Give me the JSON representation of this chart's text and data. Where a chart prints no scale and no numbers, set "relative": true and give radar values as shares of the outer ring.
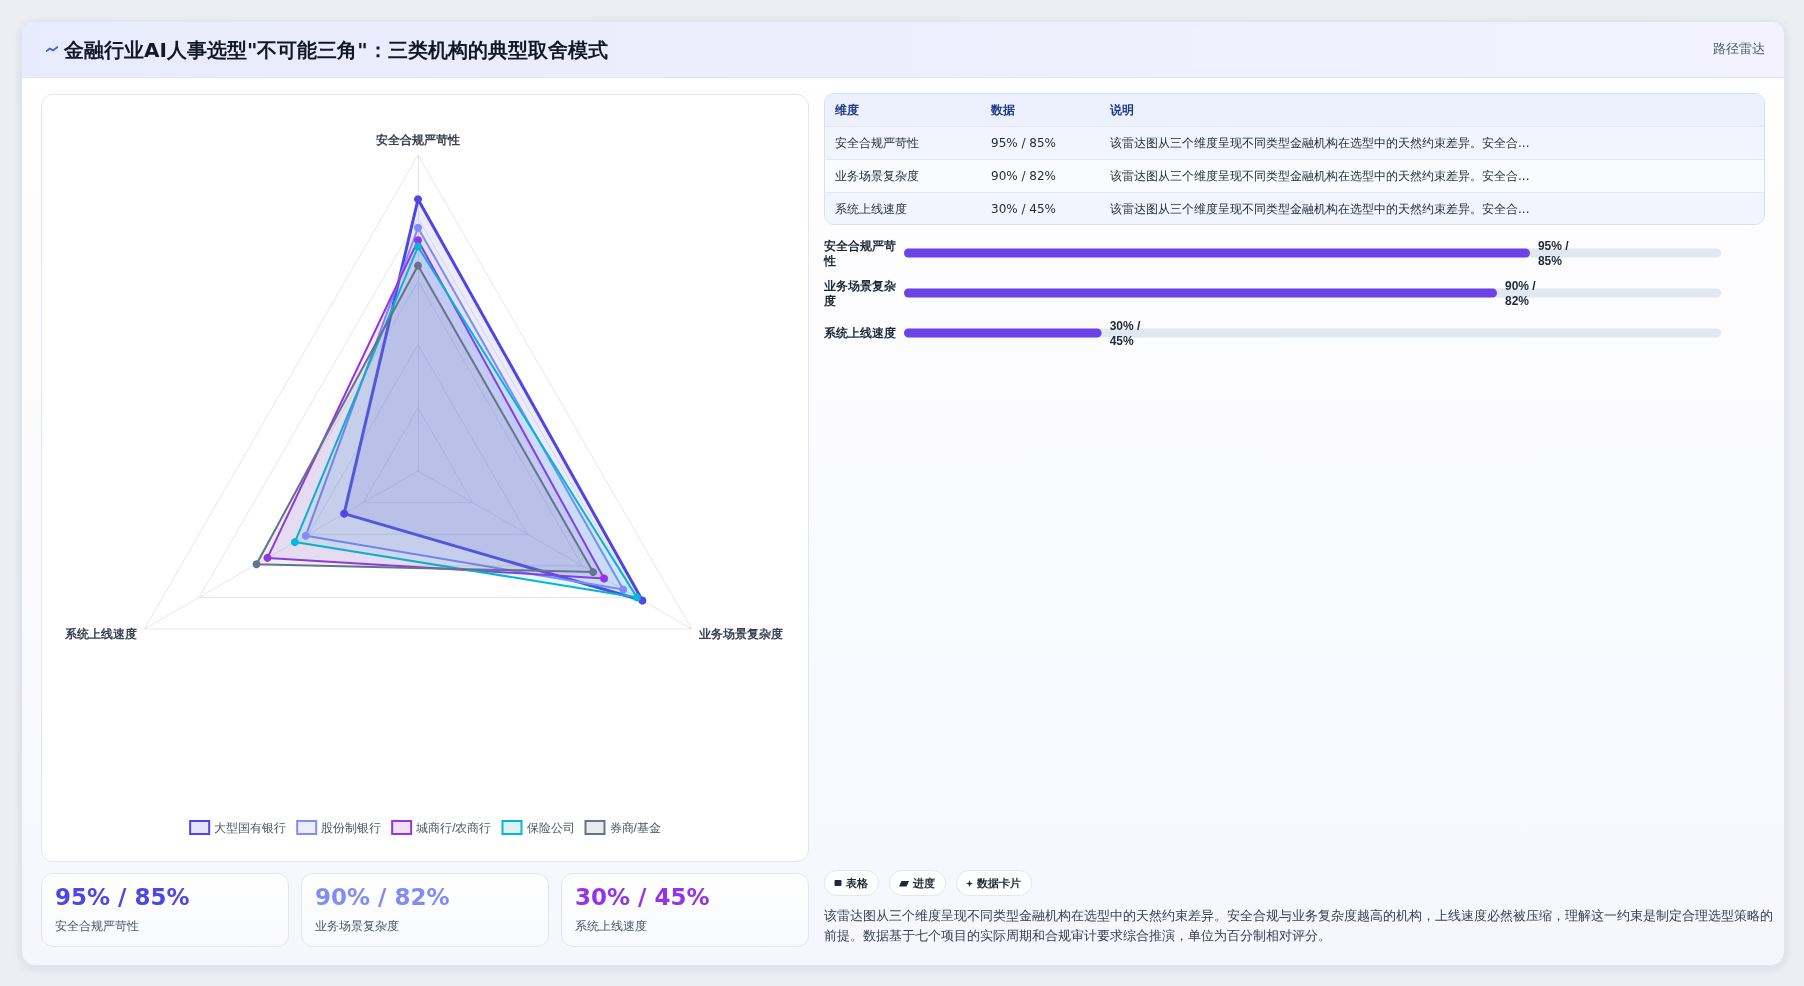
{
  "chart_data": [
    {
      "type": "radar",
      "title": "金融行业AI人事选型\"不可能三角\"：三类机构的典型取舍模式",
      "categories": [
        "安全合规严苛性",
        "业务场景复杂度",
        "系统上线速度"
      ],
      "relative": true,
      "legend": "bottom",
      "marker": "circle",
      "series": [
        {
          "name": "大型国有银行",
          "color": "#4f46e5",
          "values": [
            0.86,
            0.82,
            0.27
          ]
        },
        {
          "name": "股份制银行",
          "color": "#818cf8",
          "values": [
            0.77,
            0.75,
            0.41
          ]
        },
        {
          "name": "城商行/农商行",
          "color": "#9333ea",
          "values": [
            0.73,
            0.68,
            0.55
          ]
        },
        {
          "name": "保险公司",
          "color": "#06b6d4",
          "values": [
            0.71,
            0.8,
            0.45
          ]
        },
        {
          "name": "券商/基金",
          "color": "#64748b",
          "values": [
            0.65,
            0.64,
            0.59
          ]
        }
      ]
    },
    {
      "type": "other",
      "title": "路径雷达",
      "annotations": [
        "维度",
        "数据",
        "说明",
        "安全合规严苛性",
        "95% / 85%",
        "该雷达图从三个维度呈现不同类型金融机构在选型中的天然约束差异。安全合...",
        "业务场景复杂度",
        "90% / 82%",
        "该雷达图从三个维度呈现不同类型金融机构在选型中的天然约束差异。安全合...",
        "系统上线速度",
        "30% / 45%",
        "该雷达图从三个维度呈现不同类型金融机构在选型中的天然约束差异。安全合..."
      ]
    },
    {
      "type": "bar",
      "orientation": "horizontal",
      "categories": [
        "安全合规严苛性",
        "业务场景复杂度",
        "系统上线速度"
      ],
      "values": [
        95,
        90,
        30
      ],
      "value_labels": [
        "95% / 85%",
        "90% / 82%",
        "30% / 45%"
      ],
      "color": "#6b42e8",
      "xlim": [
        0,
        124
      ],
      "tick_labels": "y"
    },
    {
      "type": "other",
      "annotations": [
        "95% / 85%",
        "安全合规严苛性",
        "90% / 82%",
        "业务场景复杂度",
        "30% / 45%",
        "系统上线速度"
      ]
    },
    {
      "type": "other",
      "annotations": [
        "表格",
        "进度",
        "数据卡片",
        "该雷达图从三个维度呈现不同类型金融机构在选型中的天然约束差异。安全合规与业务复杂度越高的机构，上线速度必然被压缩，理解这一约束是制定合理选型策略的前提。数据基于七个项目的实际周期和合规审计要求综合推演，单位为百分制相对评分。"
      ]
    }
  ]
}
